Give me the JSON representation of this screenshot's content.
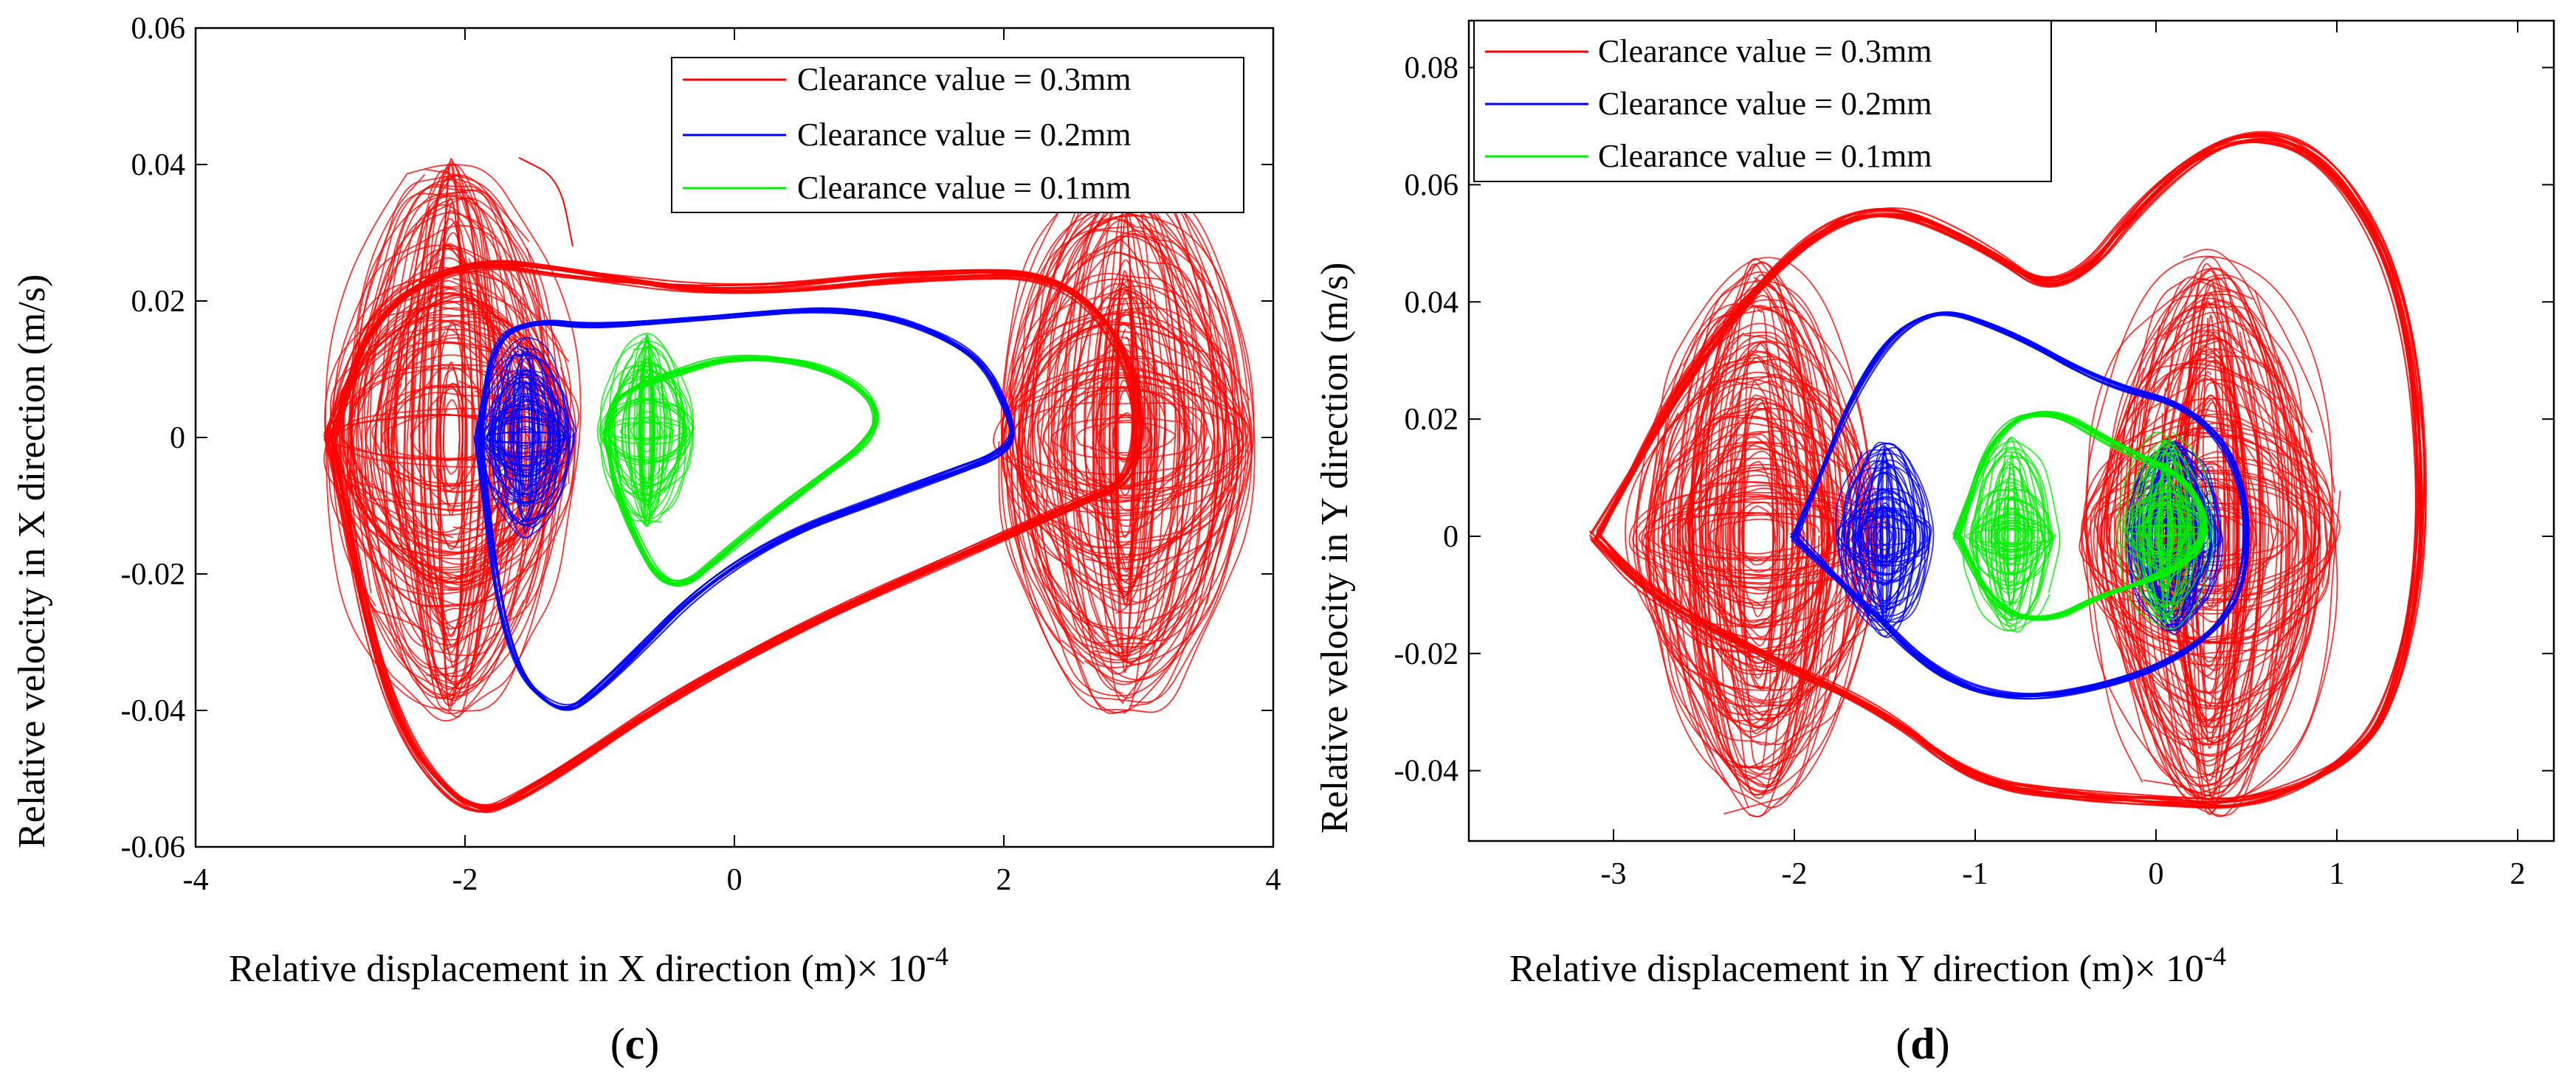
{
  "chart_data": [
    {
      "id": "c",
      "type": "line",
      "caption_letter": "c",
      "xlabel": "Relative displacement in X direction (m)",
      "xexponent_prefix": "× 10",
      "xexponent_power": "-4",
      "ylabel": "Relative velocity in X direction (m/s)",
      "xlim": [
        -4,
        4
      ],
      "ylim": [
        -0.06,
        0.06
      ],
      "xticks": [
        -4,
        -2,
        0,
        2,
        4
      ],
      "xtick_labels": [
        "-4",
        "-2",
        "0",
        "2",
        "4"
      ],
      "yticks": [
        -0.06,
        -0.04,
        -0.02,
        0,
        0.02,
        0.04,
        0.06
      ],
      "ytick_labels": [
        "-0.06",
        "-0.04",
        "-0.02",
        "0",
        "0.02",
        "0.04",
        "0.06"
      ],
      "legend_position": "top-right",
      "series": [
        {
          "name": "Clearance value = 0.3mm",
          "color": "#ff0000",
          "centers": [
            [
              -2.1,
              0.0
            ],
            [
              2.9,
              0.0
            ]
          ],
          "outline": [
            [
              -3.0,
              0.0
            ],
            [
              -2.7,
              0.018
            ],
            [
              -2.0,
              0.026
            ],
            [
              -1.2,
              0.024
            ],
            [
              0,
              0.021
            ],
            [
              1.5,
              0.024
            ],
            [
              2.5,
              0.024
            ],
            [
              3.0,
              0.01
            ],
            [
              3.0,
              -0.006
            ],
            [
              2.5,
              -0.01
            ],
            [
              0,
              -0.032
            ],
            [
              -1.5,
              -0.052
            ],
            [
              -2.0,
              -0.056
            ],
            [
              -2.6,
              -0.04
            ],
            [
              -3.0,
              0.0
            ]
          ],
          "spike": [
            [
              -1.6,
              0.041
            ],
            [
              -1.3,
              0.038
            ],
            [
              -1.2,
              0.028
            ]
          ]
        },
        {
          "name": "Clearance value = 0.2mm",
          "color": "#0000ff",
          "centers": [
            [
              -1.55,
              0.0
            ]
          ],
          "outline": [
            [
              -1.9,
              0.0
            ],
            [
              -1.8,
              0.014
            ],
            [
              -1.5,
              0.017
            ],
            [
              -1.0,
              0.016
            ],
            [
              0,
              0.018
            ],
            [
              1.0,
              0.019
            ],
            [
              1.8,
              0.013
            ],
            [
              2.05,
              0.003
            ],
            [
              2.05,
              -0.002
            ],
            [
              1.5,
              -0.006
            ],
            [
              0,
              -0.017
            ],
            [
              -1.0,
              -0.037
            ],
            [
              -1.3,
              -0.041
            ],
            [
              -1.7,
              -0.032
            ],
            [
              -1.9,
              0.0
            ]
          ]
        },
        {
          "name": "Clearance value = 0.1mm",
          "color": "#00ee00",
          "centers": [
            [
              -0.65,
              0.001
            ]
          ],
          "outline": [
            [
              -0.95,
              0.0
            ],
            [
              -0.9,
              0.006
            ],
            [
              -0.5,
              0.009
            ],
            [
              0,
              0.012
            ],
            [
              0.6,
              0.011
            ],
            [
              1.05,
              0.006
            ],
            [
              1.05,
              0.0
            ],
            [
              0.5,
              -0.008
            ],
            [
              0,
              -0.016
            ],
            [
              -0.5,
              -0.024
            ],
            [
              -0.85,
              -0.01
            ],
            [
              -0.95,
              0.0
            ]
          ]
        }
      ]
    },
    {
      "id": "d",
      "type": "line",
      "caption_letter": "d",
      "xlabel": "Relative displacement in Y direction (m)",
      "xexponent_prefix": "× 10",
      "xexponent_power": "-4",
      "ylabel": "Relative velocity in Y direction (m/s)",
      "xlim": [
        -3.8,
        2.2
      ],
      "ylim": [
        -0.052,
        0.088
      ],
      "xticks": [
        -3,
        -2,
        -1,
        0,
        1,
        2
      ],
      "xtick_labels": [
        "-3",
        "-2",
        "-1",
        "0",
        "1",
        "2"
      ],
      "yticks": [
        -0.04,
        -0.02,
        0,
        0.02,
        0.04,
        0.06,
        0.08
      ],
      "ytick_labels": [
        "-0.04",
        "-0.02",
        "0",
        "0.02",
        "0.04",
        "0.06",
        "0.08"
      ],
      "legend_position": "top-left",
      "series": [
        {
          "name": "Clearance value = 0.3mm",
          "color": "#ff0000",
          "centers": [
            [
              -2.2,
              0.0
            ],
            [
              0.3,
              0.0
            ]
          ],
          "outline": [
            [
              -3.1,
              0.0
            ],
            [
              -2.6,
              0.028
            ],
            [
              -2.0,
              0.05
            ],
            [
              -1.5,
              0.057
            ],
            [
              -1.0,
              0.05
            ],
            [
              -0.5,
              0.04
            ],
            [
              0,
              0.06
            ],
            [
              0.5,
              0.07
            ],
            [
              1.0,
              0.064
            ],
            [
              1.4,
              0.04
            ],
            [
              1.5,
              0.0
            ],
            [
              1.3,
              -0.03
            ],
            [
              1.0,
              -0.04
            ],
            [
              0.5,
              -0.046
            ],
            [
              0,
              -0.045
            ],
            [
              -0.5,
              -0.044
            ],
            [
              -1.0,
              -0.042
            ],
            [
              -1.5,
              -0.03
            ],
            [
              -2.2,
              -0.02
            ],
            [
              -2.8,
              -0.01
            ],
            [
              -3.1,
              0.0
            ]
          ]
        },
        {
          "name": "Clearance value = 0.2mm",
          "color": "#0000ff",
          "centers": [
            [
              -1.5,
              0.0
            ],
            [
              0.1,
              0.0
            ]
          ],
          "outline": [
            [
              -2.0,
              0.0
            ],
            [
              -1.6,
              0.03
            ],
            [
              -1.25,
              0.04
            ],
            [
              -0.8,
              0.035
            ],
            [
              -0.3,
              0.026
            ],
            [
              0.2,
              0.022
            ],
            [
              0.5,
              0.01
            ],
            [
              0.5,
              -0.01
            ],
            [
              0.2,
              -0.02
            ],
            [
              -0.3,
              -0.026
            ],
            [
              -0.8,
              -0.028
            ],
            [
              -1.2,
              -0.024
            ],
            [
              -1.6,
              -0.012
            ],
            [
              -2.0,
              0.0
            ]
          ]
        },
        {
          "name": "Clearance value = 0.1mm",
          "color": "#00ee00",
          "centers": [
            [
              -0.8,
              0.0
            ],
            [
              0.05,
              0.001
            ]
          ],
          "outline": [
            [
              -1.1,
              0.0
            ],
            [
              -0.9,
              0.018
            ],
            [
              -0.6,
              0.022
            ],
            [
              -0.2,
              0.015
            ],
            [
              0.2,
              0.01
            ],
            [
              0.3,
              0.0
            ],
            [
              0.1,
              -0.006
            ],
            [
              -0.3,
              -0.01
            ],
            [
              -0.6,
              -0.015
            ],
            [
              -0.9,
              -0.012
            ],
            [
              -1.1,
              0.0
            ]
          ]
        }
      ]
    }
  ]
}
